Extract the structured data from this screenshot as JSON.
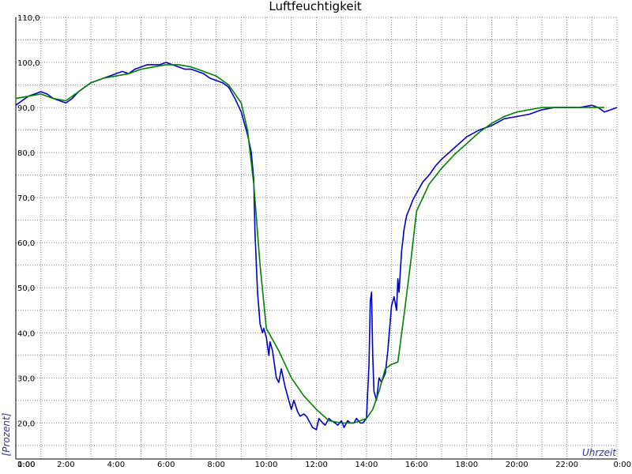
{
  "chart_data": {
    "type": "line",
    "title": "Luftfeuchtigkeit",
    "xlabel": "Uhrzeit",
    "ylabel": "[Prozent]",
    "x_ticks": [
      "0:00",
      "2:00",
      "4:00",
      "6:00",
      "8:00",
      "10:00",
      "12:00",
      "14:00",
      "16:00",
      "18:00",
      "20:00",
      "22:00",
      "0:00"
    ],
    "x_tick_start_label": "1:00",
    "y_ticks": [
      "20,0",
      "30,0",
      "40,0",
      "50,0",
      "60,0",
      "70,0",
      "80,0",
      "90,0",
      "100,0",
      "110,0"
    ],
    "xlim": [
      0,
      24
    ],
    "ylim": [
      12,
      110
    ],
    "grid": true,
    "colors": {
      "measured": "#0000cc",
      "smoothed": "#008000",
      "axis_label": "#333399",
      "grid": "#808080"
    },
    "series": [
      {
        "color": "#0000cc",
        "x": [
          0,
          0.25,
          0.5,
          0.75,
          1.0,
          1.25,
          1.5,
          1.75,
          2.0,
          2.25,
          2.5,
          2.75,
          3.0,
          3.25,
          3.5,
          3.75,
          4.0,
          4.25,
          4.5,
          4.75,
          5.0,
          5.25,
          5.5,
          5.75,
          6.0,
          6.25,
          6.5,
          6.75,
          7.0,
          7.25,
          7.5,
          7.75,
          8.0,
          8.25,
          8.5,
          8.75,
          9.0,
          9.1,
          9.25,
          9.4,
          9.5,
          9.55,
          9.65,
          9.75,
          9.8,
          9.85,
          9.9,
          10.0,
          10.05,
          10.1,
          10.15,
          10.25,
          10.3,
          10.35,
          10.4,
          10.5,
          10.6,
          10.75,
          10.85,
          11.0,
          11.1,
          11.25,
          11.35,
          11.5,
          11.6,
          11.75,
          11.85,
          12.0,
          12.1,
          12.25,
          12.35,
          12.5,
          12.6,
          12.75,
          12.85,
          13.0,
          13.1,
          13.25,
          13.35,
          13.5,
          13.6,
          13.75,
          13.85,
          14.0,
          14.1,
          14.15,
          14.2,
          14.25,
          14.3,
          14.4,
          14.5,
          14.6,
          14.75,
          14.85,
          15.0,
          15.1,
          15.2,
          15.25,
          15.3,
          15.4,
          15.5,
          15.6,
          15.75,
          15.85,
          16.0,
          16.25,
          16.5,
          16.75,
          17.0,
          17.5,
          18.0,
          18.5,
          19.0,
          19.5,
          20.0,
          20.5,
          21.0,
          21.5,
          22.0,
          22.5,
          23.0,
          23.25,
          23.5,
          23.75,
          24.0
        ],
        "y": [
          90.5,
          91.5,
          92.5,
          93,
          93.5,
          93,
          92,
          91.5,
          91,
          92,
          93.5,
          94.5,
          95.5,
          96,
          96.5,
          97,
          97.5,
          98,
          97.5,
          98.5,
          99,
          99.5,
          99.5,
          99.5,
          100,
          99.5,
          99,
          98.5,
          98.5,
          98,
          97.5,
          96.5,
          96,
          95.5,
          94.5,
          92,
          89,
          87,
          84,
          80,
          74,
          62,
          49,
          42,
          41,
          40,
          41,
          39,
          37,
          35,
          38,
          36,
          34,
          32,
          30,
          29,
          32,
          28,
          26,
          23,
          25,
          22.5,
          21.5,
          22,
          21.5,
          20,
          19,
          18.5,
          21,
          20,
          19.5,
          21,
          20.5,
          20,
          19.5,
          20.5,
          19,
          20.5,
          20,
          20,
          21,
          20,
          20,
          21,
          33,
          47,
          49,
          35,
          27,
          25,
          30,
          29,
          31,
          36,
          46,
          48,
          45,
          52,
          49,
          58,
          63,
          66,
          68,
          69.5,
          71,
          73.5,
          75,
          77,
          78.5,
          81,
          83.5,
          85,
          86,
          87.5,
          88,
          88.5,
          89.5,
          90,
          90,
          90,
          90.5,
          90,
          89,
          89.5,
          90
        ]
      },
      {
        "color": "#008000",
        "x": [
          0,
          0.5,
          1.0,
          1.5,
          2.0,
          2.5,
          3.0,
          3.5,
          4.0,
          4.5,
          5.0,
          5.5,
          6.0,
          6.5,
          7.0,
          7.5,
          8.0,
          8.5,
          9.0,
          9.25,
          9.5,
          9.75,
          10.0,
          10.5,
          11.0,
          11.5,
          12.0,
          12.5,
          13.0,
          13.5,
          14.0,
          14.25,
          14.5,
          14.75,
          15.0,
          15.25,
          15.5,
          15.75,
          16.0,
          16.5,
          17.0,
          17.5,
          18.0,
          18.5,
          19.0,
          19.5,
          20.0,
          20.5,
          21.0,
          21.5,
          22.0,
          22.5,
          23.0,
          23.5
        ],
        "y": [
          92,
          92.5,
          93,
          92,
          91.5,
          93.5,
          95.5,
          96.5,
          97,
          97.5,
          98.5,
          99,
          99.5,
          99.5,
          99,
          98,
          97,
          95,
          91,
          85,
          73,
          55,
          41,
          36,
          30,
          26,
          23,
          20.5,
          20,
          20,
          21,
          23,
          27,
          32,
          33,
          33.5,
          44,
          55,
          67,
          73,
          76.5,
          79.5,
          82,
          84.5,
          86.5,
          88,
          89,
          89.5,
          90,
          90,
          90,
          90,
          90,
          90
        ]
      }
    ]
  }
}
